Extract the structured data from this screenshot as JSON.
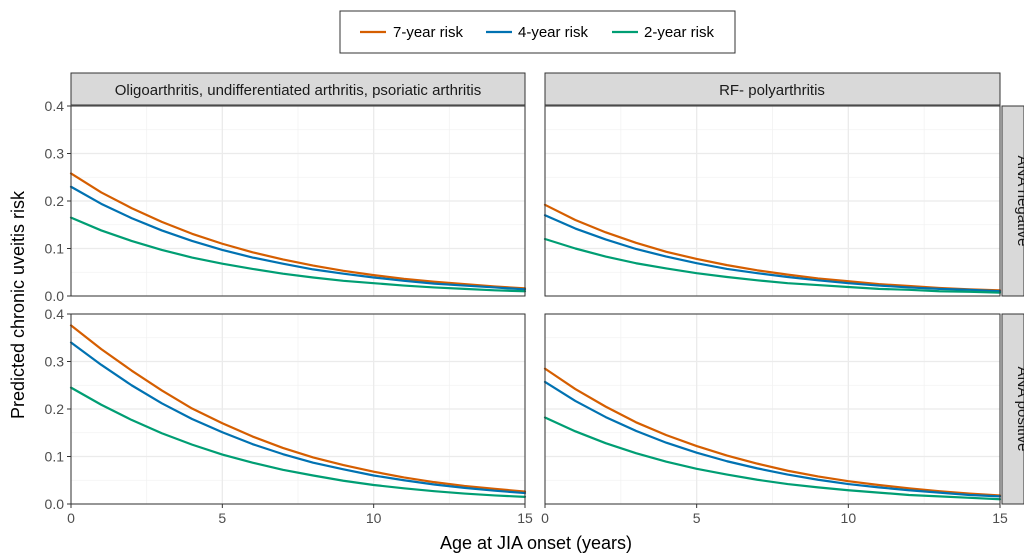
{
  "chart_data": {
    "type": "line",
    "xlabel": "Age at JIA onset (years)",
    "ylabel": "Predicted chronic uveitis risk",
    "xlim": [
      0,
      15
    ],
    "ylim": [
      0,
      0.4
    ],
    "x_ticks": [
      0,
      5,
      10,
      15
    ],
    "y_ticks": [
      0.0,
      0.1,
      0.2,
      0.3,
      0.4
    ],
    "x_tick_labels": [
      "0",
      "5",
      "10",
      "15"
    ],
    "y_tick_labels": [
      "0.0",
      "0.1",
      "0.2",
      "0.3",
      "0.4"
    ],
    "grid": true,
    "legend_position": "top",
    "columns": [
      "Oligoarthritis, undifferentiated arthritis, psoriatic arthritis",
      "RF- polyarthritis"
    ],
    "rows": [
      "ANA negative",
      "ANA positive"
    ],
    "x": [
      0,
      1,
      2,
      3,
      4,
      5,
      6,
      7,
      8,
      9,
      10,
      11,
      12,
      13,
      14,
      15
    ],
    "series_meta": [
      {
        "name": "7-year risk",
        "color": "#D55E00"
      },
      {
        "name": "4-year risk",
        "color": "#0072B2"
      },
      {
        "name": "2-year risk",
        "color": "#009E73"
      }
    ],
    "panels": [
      {
        "column": 0,
        "row": 0,
        "series": [
          {
            "name": "7-year risk",
            "values": [
              0.258,
              0.218,
              0.185,
              0.156,
              0.131,
              0.11,
              0.092,
              0.077,
              0.064,
              0.053,
              0.044,
              0.036,
              0.03,
              0.025,
              0.02,
              0.016
            ]
          },
          {
            "name": "4-year risk",
            "values": [
              0.23,
              0.194,
              0.164,
              0.138,
              0.116,
              0.097,
              0.081,
              0.068,
              0.056,
              0.047,
              0.039,
              0.032,
              0.026,
              0.022,
              0.018,
              0.014
            ]
          },
          {
            "name": "2-year risk",
            "values": [
              0.165,
              0.138,
              0.116,
              0.097,
              0.081,
              0.068,
              0.057,
              0.047,
              0.039,
              0.032,
              0.027,
              0.022,
              0.018,
              0.015,
              0.012,
              0.01
            ]
          }
        ]
      },
      {
        "column": 1,
        "row": 0,
        "series": [
          {
            "name": "7-year risk",
            "values": [
              0.192,
              0.16,
              0.134,
              0.112,
              0.093,
              0.078,
              0.065,
              0.054,
              0.045,
              0.037,
              0.031,
              0.025,
              0.021,
              0.017,
              0.014,
              0.012
            ]
          },
          {
            "name": "4-year risk",
            "values": [
              0.17,
              0.142,
              0.119,
              0.099,
              0.083,
              0.069,
              0.057,
              0.048,
              0.04,
              0.033,
              0.027,
              0.022,
              0.018,
              0.015,
              0.013,
              0.01
            ]
          },
          {
            "name": "2-year risk",
            "values": [
              0.12,
              0.1,
              0.083,
              0.069,
              0.058,
              0.048,
              0.04,
              0.033,
              0.027,
              0.023,
              0.019,
              0.015,
              0.013,
              0.01,
              0.009,
              0.007
            ]
          }
        ]
      },
      {
        "column": 0,
        "row": 1,
        "series": [
          {
            "name": "7-year risk",
            "values": [
              0.376,
              0.326,
              0.281,
              0.239,
              0.201,
              0.17,
              0.142,
              0.118,
              0.098,
              0.082,
              0.068,
              0.056,
              0.046,
              0.038,
              0.032,
              0.026
            ]
          },
          {
            "name": "4-year risk",
            "values": [
              0.34,
              0.293,
              0.25,
              0.212,
              0.179,
              0.151,
              0.126,
              0.105,
              0.087,
              0.073,
              0.06,
              0.05,
              0.041,
              0.034,
              0.028,
              0.023
            ]
          },
          {
            "name": "2-year risk",
            "values": [
              0.245,
              0.209,
              0.177,
              0.149,
              0.125,
              0.104,
              0.087,
              0.072,
              0.06,
              0.049,
              0.04,
              0.033,
              0.027,
              0.022,
              0.018,
              0.015
            ]
          }
        ]
      },
      {
        "column": 1,
        "row": 1,
        "series": [
          {
            "name": "7-year risk",
            "values": [
              0.285,
              0.242,
              0.205,
              0.172,
              0.145,
              0.122,
              0.102,
              0.085,
              0.07,
              0.058,
              0.048,
              0.04,
              0.033,
              0.027,
              0.022,
              0.018
            ]
          },
          {
            "name": "4-year risk",
            "values": [
              0.257,
              0.217,
              0.183,
              0.154,
              0.129,
              0.108,
              0.09,
              0.075,
              0.062,
              0.051,
              0.042,
              0.035,
              0.029,
              0.024,
              0.019,
              0.016
            ]
          },
          {
            "name": "2-year risk",
            "values": [
              0.182,
              0.153,
              0.128,
              0.107,
              0.089,
              0.074,
              0.062,
              0.051,
              0.042,
              0.035,
              0.029,
              0.024,
              0.019,
              0.016,
              0.013,
              0.01
            ]
          }
        ]
      }
    ]
  }
}
